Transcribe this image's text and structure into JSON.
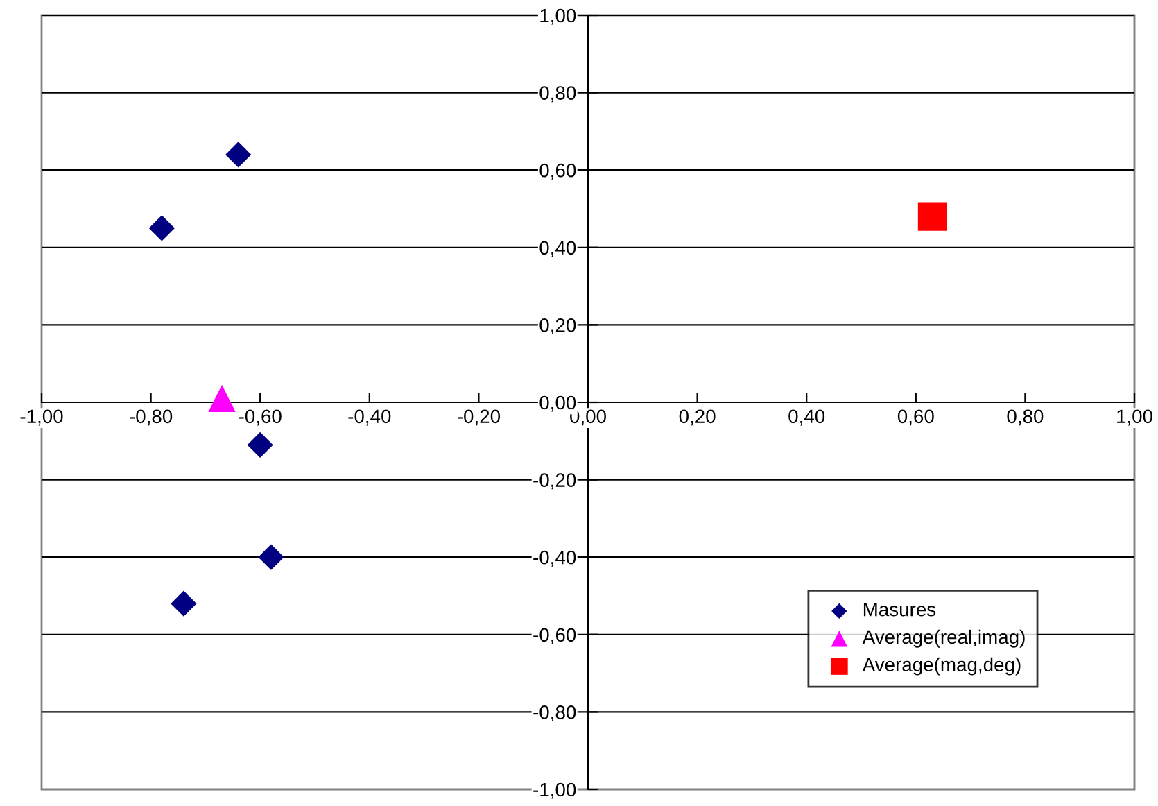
{
  "chart_data": {
    "type": "scatter",
    "series": [
      {
        "name": "Masures",
        "color": "#000080",
        "marker": "diamond",
        "x": [
          -0.64,
          -0.78,
          -0.6,
          -0.58,
          -0.74
        ],
        "values": [
          0.64,
          0.45,
          -0.11,
          -0.4,
          -0.52
        ]
      },
      {
        "name": "Average(real,imag)",
        "color": "#ff00ff",
        "marker": "triangle",
        "x": [
          -0.67
        ],
        "values": [
          0.01
        ]
      },
      {
        "name": "Average(mag,deg)",
        "color": "#ff0000",
        "marker": "square",
        "x": [
          0.63
        ],
        "values": [
          0.48
        ]
      }
    ],
    "xlim": [
      -1,
      1
    ],
    "ylim": [
      -1,
      1
    ],
    "xticks": [
      {
        "value": -1,
        "label": "-1,00"
      },
      {
        "value": -0.8,
        "label": "-0,80"
      },
      {
        "value": -0.6,
        "label": "-0,60"
      },
      {
        "value": -0.4,
        "label": "-0,40"
      },
      {
        "value": -0.2,
        "label": "-0,20"
      },
      {
        "value": 0,
        "label": "0,00"
      },
      {
        "value": 0.2,
        "label": "0,20"
      },
      {
        "value": 0.4,
        "label": "0,40"
      },
      {
        "value": 0.6,
        "label": "0,60"
      },
      {
        "value": 0.8,
        "label": "0,80"
      },
      {
        "value": 1,
        "label": "1,00"
      }
    ],
    "yticks": [
      {
        "value": -1,
        "label": "-1,00"
      },
      {
        "value": -0.8,
        "label": "-0,80"
      },
      {
        "value": -0.6,
        "label": "-0,60"
      },
      {
        "value": -0.4,
        "label": "-0,40"
      },
      {
        "value": -0.2,
        "label": "-0,20"
      },
      {
        "value": 0,
        "label": "0,00"
      },
      {
        "value": 0.2,
        "label": "0,20"
      },
      {
        "value": 0.4,
        "label": "0,40"
      },
      {
        "value": 0.6,
        "label": "0,60"
      },
      {
        "value": 0.8,
        "label": "0,80"
      },
      {
        "value": 1,
        "label": "1,00"
      }
    ],
    "grid": "y",
    "legend": "bottom right"
  }
}
